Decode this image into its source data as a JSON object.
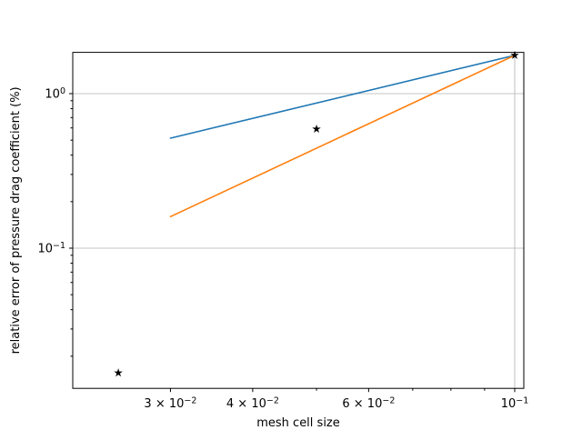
{
  "chart_data": {
    "type": "line",
    "title": "",
    "xlabel": "mesh cell size",
    "ylabel": "relative error of pressure drag coefficient (%)",
    "x_scale": "log",
    "y_scale": "log",
    "xlim": [
      0.0213,
      0.1033
    ],
    "ylim": [
      0.0124,
      1.85
    ],
    "grid": "major",
    "legend": "none",
    "colors": {
      "first_order_line": "#1f77b4",
      "second_order_line": "#ff7f0e",
      "marker": "#000000",
      "gridline": "#b0b0b0",
      "spine": "#000000",
      "text": "#000000"
    },
    "series": [
      {
        "name": "first-order-reference",
        "kind": "line",
        "color": "#1f77b4",
        "points": [
          {
            "x": 0.03,
            "y": 0.515
          },
          {
            "x": 0.1,
            "y": 1.77
          }
        ]
      },
      {
        "name": "second-order-reference",
        "kind": "line",
        "color": "#ff7f0e",
        "points": [
          {
            "x": 0.03,
            "y": 0.16
          },
          {
            "x": 0.1,
            "y": 1.77
          }
        ]
      },
      {
        "name": "simulation-error-points",
        "kind": "scatter",
        "marker": "star",
        "color": "#000000",
        "points": [
          {
            "x": 0.025,
            "y": 0.0156
          },
          {
            "x": 0.05,
            "y": 0.59
          },
          {
            "x": 0.1,
            "y": 1.77
          }
        ]
      }
    ],
    "x_ticks": [
      {
        "v": 0.03,
        "base": "3 × 10",
        "exp": "−2",
        "kind": "minor-labeled",
        "grid": false
      },
      {
        "v": 0.04,
        "base": "4 × 10",
        "exp": "−2",
        "kind": "minor-labeled",
        "grid": false
      },
      {
        "v": 0.05,
        "kind": "minor",
        "grid": false
      },
      {
        "v": 0.06,
        "base": "6 × 10",
        "exp": "−2",
        "kind": "minor-labeled",
        "grid": false
      },
      {
        "v": 0.07,
        "kind": "minor",
        "grid": false
      },
      {
        "v": 0.08,
        "kind": "minor",
        "grid": false
      },
      {
        "v": 0.09,
        "kind": "minor",
        "grid": false
      },
      {
        "v": 0.1,
        "base": "10",
        "exp": "−1",
        "kind": "major",
        "grid": true
      }
    ],
    "y_ticks": [
      {
        "v": 1.0,
        "base": "10",
        "exp": "0",
        "kind": "major",
        "grid": true
      },
      {
        "v": 0.9,
        "kind": "minor"
      },
      {
        "v": 0.8,
        "kind": "minor"
      },
      {
        "v": 0.7,
        "kind": "minor"
      },
      {
        "v": 0.6,
        "kind": "minor"
      },
      {
        "v": 0.5,
        "kind": "minor"
      },
      {
        "v": 0.4,
        "kind": "minor"
      },
      {
        "v": 0.3,
        "kind": "minor"
      },
      {
        "v": 0.2,
        "kind": "minor"
      },
      {
        "v": 0.1,
        "base": "10",
        "exp": "−1",
        "kind": "major",
        "grid": true
      },
      {
        "v": 0.09,
        "kind": "minor"
      },
      {
        "v": 0.08,
        "kind": "minor"
      },
      {
        "v": 0.07,
        "kind": "minor"
      },
      {
        "v": 0.06,
        "kind": "minor"
      },
      {
        "v": 0.05,
        "kind": "minor"
      },
      {
        "v": 0.04,
        "kind": "minor"
      },
      {
        "v": 0.03,
        "kind": "minor"
      },
      {
        "v": 0.02,
        "kind": "minor"
      }
    ]
  }
}
